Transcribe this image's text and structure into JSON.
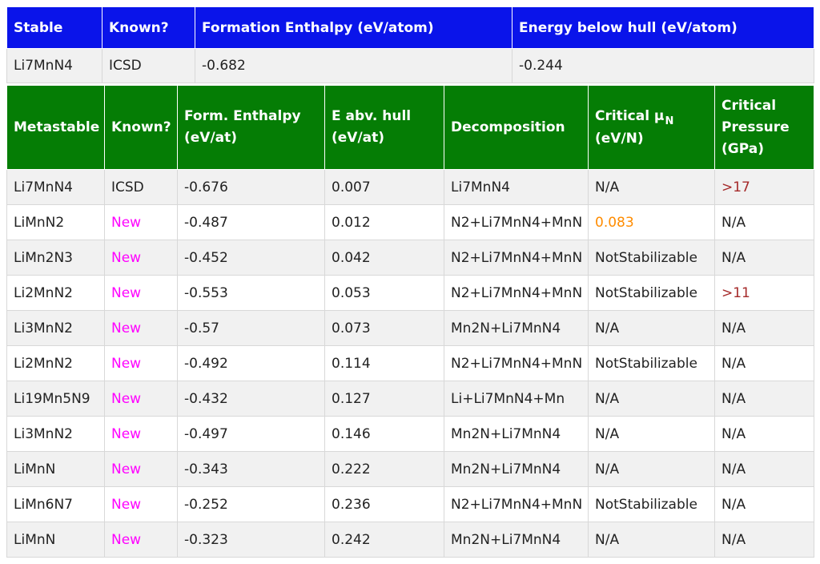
{
  "stable": {
    "headers": [
      "Stable",
      "Known?",
      "Formation Enthalpy (eV/atom)",
      "Energy below hull (eV/atom)"
    ],
    "row": {
      "compound": "Li7MnN4",
      "known": "ICSD",
      "formation_enthalpy": "-0.682",
      "energy_below_hull": "-0.244"
    }
  },
  "metastable": {
    "headers": {
      "metastable": "Metastable",
      "known": "Known?",
      "form_enthalpy_line1": "Form. Enthalpy",
      "form_enthalpy_line2": "(eV/at)",
      "e_abv_hull_line1": "E abv. hull",
      "e_abv_hull_line2": "(eV/at)",
      "decomposition": "Decomposition",
      "critical_mu_text": "Critical μ",
      "critical_mu_sub": "N",
      "critical_mu_line2": "(eV/N)",
      "critical_pressure_line1": "Critical",
      "critical_pressure_line2": "Pressure",
      "critical_pressure_line3": "(GPa)"
    },
    "rows": [
      {
        "compound": "Li7MnN4",
        "known": "ICSD",
        "form_enthalpy": "-0.676",
        "e_abv_hull": "0.007",
        "decomposition": "Li7MnN4",
        "critical_mu": "N/A",
        "critical_pressure": ">17"
      },
      {
        "compound": "LiMnN2",
        "known": "New",
        "form_enthalpy": "-0.487",
        "e_abv_hull": "0.012",
        "decomposition": "N2+Li7MnN4+MnN",
        "critical_mu": "0.083",
        "critical_pressure": "N/A"
      },
      {
        "compound": "LiMn2N3",
        "known": "New",
        "form_enthalpy": "-0.452",
        "e_abv_hull": "0.042",
        "decomposition": "N2+Li7MnN4+MnN",
        "critical_mu": "NotStabilizable",
        "critical_pressure": "N/A"
      },
      {
        "compound": "Li2MnN2",
        "known": "New",
        "form_enthalpy": "-0.553",
        "e_abv_hull": "0.053",
        "decomposition": "N2+Li7MnN4+MnN",
        "critical_mu": "NotStabilizable",
        "critical_pressure": ">11"
      },
      {
        "compound": "Li3MnN2",
        "known": "New",
        "form_enthalpy": "-0.57",
        "e_abv_hull": "0.073",
        "decomposition": "Mn2N+Li7MnN4",
        "critical_mu": "N/A",
        "critical_pressure": "N/A"
      },
      {
        "compound": "Li2MnN2",
        "known": "New",
        "form_enthalpy": "-0.492",
        "e_abv_hull": "0.114",
        "decomposition": "N2+Li7MnN4+MnN",
        "critical_mu": "NotStabilizable",
        "critical_pressure": "N/A"
      },
      {
        "compound": "Li19Mn5N9",
        "known": "New",
        "form_enthalpy": "-0.432",
        "e_abv_hull": "0.127",
        "decomposition": "Li+Li7MnN4+Mn",
        "critical_mu": "N/A",
        "critical_pressure": "N/A"
      },
      {
        "compound": "Li3MnN2",
        "known": "New",
        "form_enthalpy": "-0.497",
        "e_abv_hull": "0.146",
        "decomposition": "Mn2N+Li7MnN4",
        "critical_mu": "N/A",
        "critical_pressure": "N/A"
      },
      {
        "compound": "LiMnN",
        "known": "New",
        "form_enthalpy": "-0.343",
        "e_abv_hull": "0.222",
        "decomposition": "Mn2N+Li7MnN4",
        "critical_mu": "N/A",
        "critical_pressure": "N/A"
      },
      {
        "compound": "LiMn6N7",
        "known": "New",
        "form_enthalpy": "-0.252",
        "e_abv_hull": "0.236",
        "decomposition": "N2+Li7MnN4+MnN",
        "critical_mu": "NotStabilizable",
        "critical_pressure": "N/A"
      },
      {
        "compound": "LiMnN",
        "known": "New",
        "form_enthalpy": "-0.323",
        "e_abv_hull": "0.242",
        "decomposition": "Mn2N+Li7MnN4",
        "critical_mu": "N/A",
        "critical_pressure": "N/A"
      }
    ]
  },
  "colors": {
    "stable_header_bg": "#0a14ea",
    "metastable_header_bg": "#057d05",
    "new_text": "#ff00ff",
    "mu_value_text": "#ff8c00",
    "pressure_value_text": "#a52a2a",
    "row_alt_bg": "#f1f1f1"
  }
}
